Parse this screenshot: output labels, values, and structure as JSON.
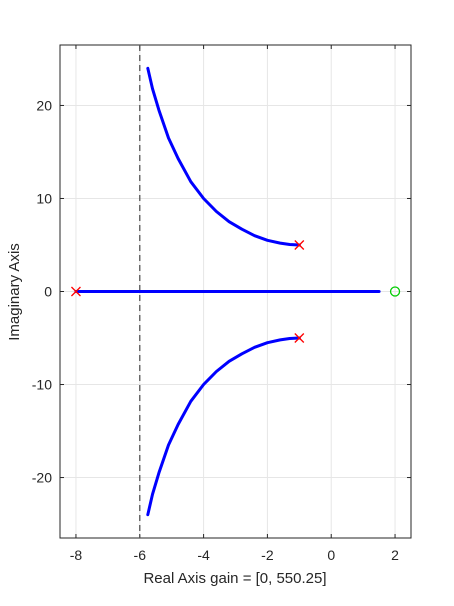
{
  "chart_data": {
    "type": "line",
    "title": "",
    "xlabel": "Real Axis     gain = [0, 550.25]",
    "ylabel": "Imaginary Axis",
    "xlim": [
      -8.5,
      2.5
    ],
    "ylim": [
      -26.5,
      26.5
    ],
    "grid": true,
    "x_ticks": [
      -8,
      -6,
      -4,
      -2,
      0,
      2
    ],
    "y_ticks": [
      -20,
      -10,
      0,
      10,
      20
    ],
    "x_tick_labels": [
      "-8",
      "-6",
      "-4",
      "-2",
      "0",
      "2"
    ],
    "y_tick_labels": [
      "-20",
      "-10",
      "0",
      "10",
      "20"
    ],
    "asymptote_x": -6,
    "poles": [
      {
        "x": -8,
        "y": 0
      },
      {
        "x": -1,
        "y": 5
      },
      {
        "x": -1,
        "y": -5
      }
    ],
    "zeros": [
      {
        "x": 2,
        "y": 0
      }
    ],
    "series": [
      {
        "x": [
          -1,
          -1.3,
          -1.6,
          -2.0,
          -2.4,
          -2.8,
          -3.2,
          -3.6,
          -4.0,
          -4.4,
          -4.8,
          -5.1,
          -5.4,
          -5.6,
          -5.75
        ],
        "y": [
          5,
          5.05,
          5.2,
          5.5,
          6.0,
          6.7,
          7.5,
          8.6,
          10.0,
          11.8,
          14.3,
          16.5,
          19.5,
          21.8,
          24
        ]
      },
      {
        "x": [
          -1,
          -1.3,
          -1.6,
          -2.0,
          -2.4,
          -2.8,
          -3.2,
          -3.6,
          -4.0,
          -4.4,
          -4.8,
          -5.1,
          -5.4,
          -5.6,
          -5.75
        ],
        "y": [
          -5,
          -5.05,
          -5.2,
          -5.5,
          -6.0,
          -6.7,
          -7.5,
          -8.6,
          -10.0,
          -11.8,
          -14.3,
          -16.5,
          -19.5,
          -21.8,
          -24
        ]
      },
      {
        "x": [
          -8,
          1.5
        ],
        "y": [
          0,
          0
        ]
      }
    ],
    "colors": {
      "locus": "#0000ff",
      "pole": "#ff0000",
      "zero": "#00cc00",
      "asymptote": "#555555",
      "grid": "#e6e6e6"
    }
  }
}
